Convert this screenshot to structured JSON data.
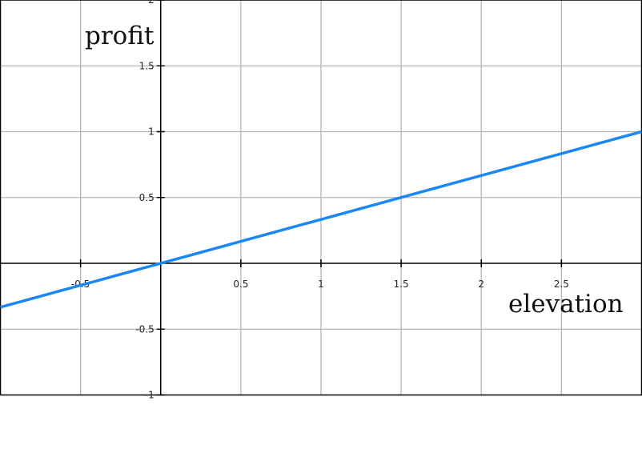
{
  "chart_data": {
    "type": "line",
    "title": "",
    "xlabel": "elevation",
    "ylabel": "profit",
    "xlim": [
      -1,
      3
    ],
    "ylim": [
      -1,
      2
    ],
    "grid": true,
    "x_ticks": [
      -0.5,
      0.5,
      1,
      1.5,
      2,
      2.5
    ],
    "x_tick_labels": [
      "-0.5",
      "0.5",
      "1",
      "1.5",
      "2",
      "2.5"
    ],
    "y_ticks": [
      -1,
      -0.5,
      0.5,
      1,
      1.5,
      2
    ],
    "y_tick_labels": [
      "-1",
      "-0.5",
      "0.5",
      "1",
      "1.5",
      "2"
    ],
    "series": [
      {
        "color": "#1a88f0",
        "x": [
          -1,
          3
        ],
        "y": [
          -0.3333,
          1
        ]
      }
    ]
  }
}
